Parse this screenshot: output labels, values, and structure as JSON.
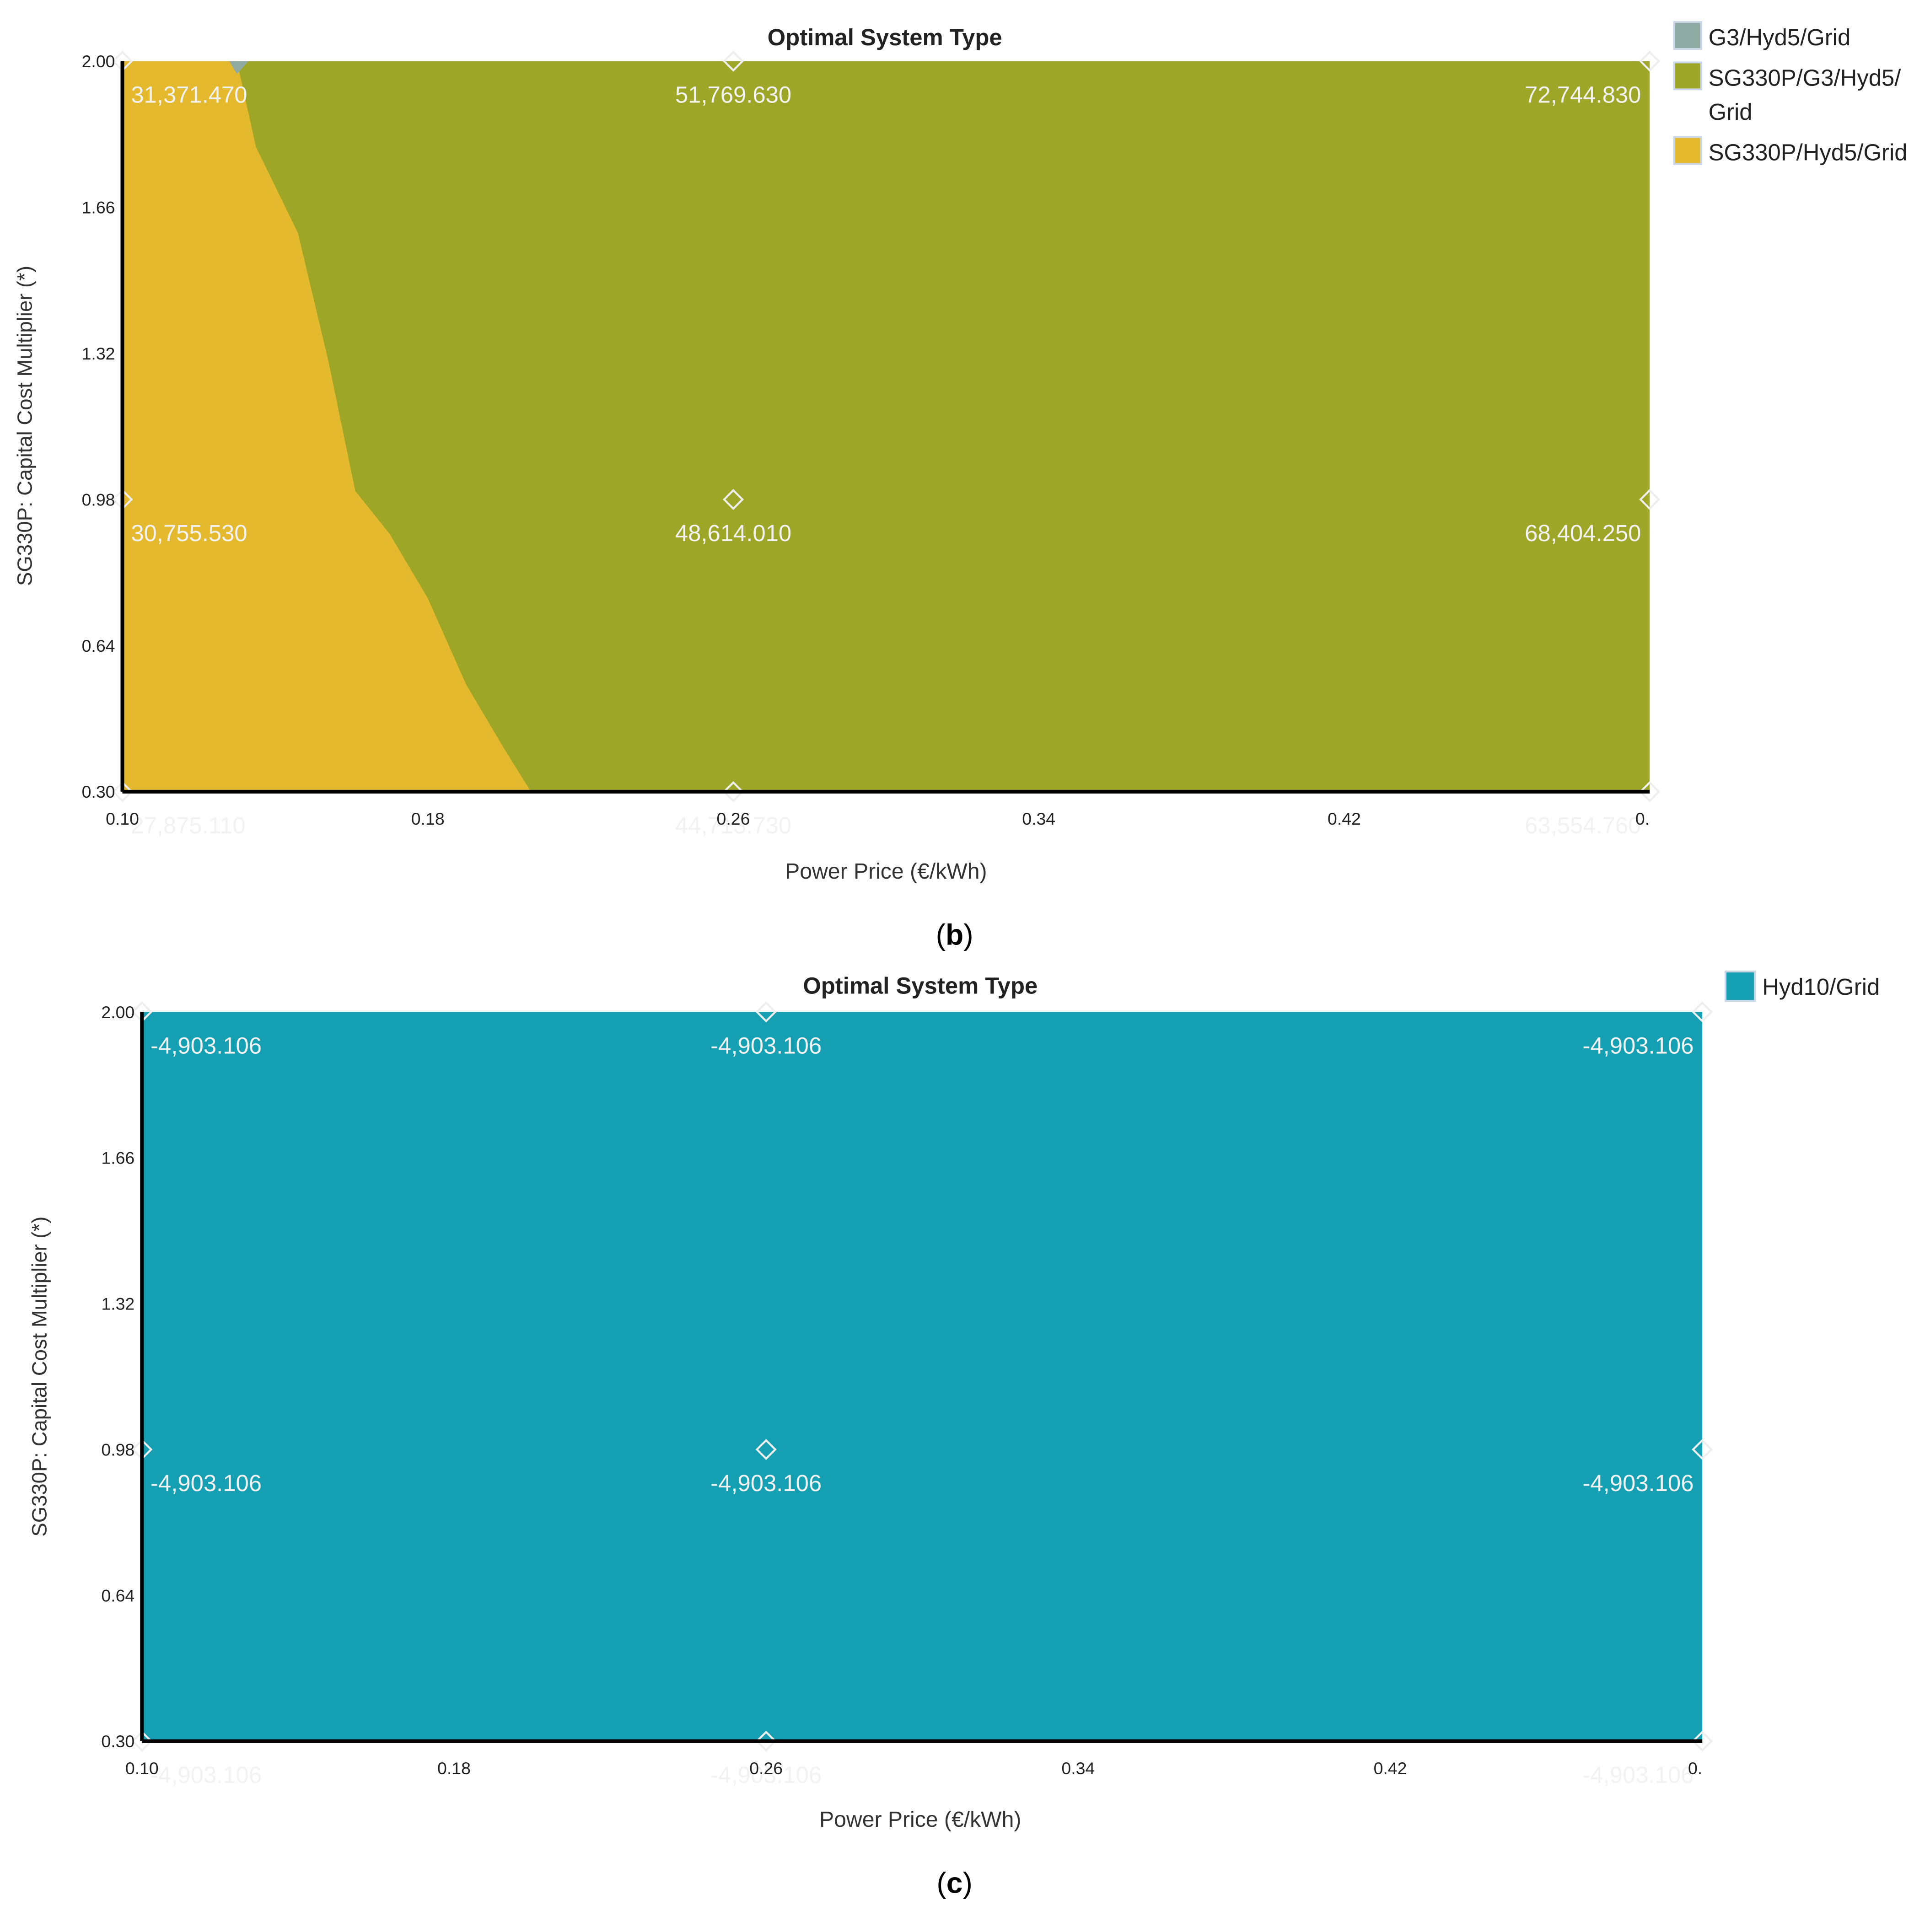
{
  "chart_data": [
    {
      "type": "heatmap",
      "panel_label": "b",
      "title": "Optimal System Type",
      "xlabel": "Power Price (€/kWh)",
      "ylabel": "SG330P: Capital Cost Multiplier (*)",
      "xlim": [
        0.1,
        0.5
      ],
      "ylim": [
        0.3,
        2.0
      ],
      "x_ticks": [
        "0.10",
        "0.18",
        "0.26",
        "0.34",
        "0.42",
        "0."
      ],
      "y_ticks": [
        "0.30",
        "0.64",
        "0.98",
        "1.32",
        "1.66",
        "2.00"
      ],
      "legend_position": "right",
      "legend": [
        {
          "label": "G3/Hyd5/Grid",
          "color": "#8faaa3"
        },
        {
          "label": "SG330P/G3/Hyd5/ Grid",
          "color": "#9da626"
        },
        {
          "label": "SG330P/Hyd5/Grid",
          "color": "#e4b92e"
        }
      ],
      "background_system": "SG330P/G3/Hyd5/ Grid",
      "regions": [
        {
          "system": "SG330P/Hyd5/Grid",
          "boundary": [
            [
              0.1,
              2.0
            ],
            [
              0.13,
              2.0
            ],
            [
              0.135,
              1.8
            ],
            [
              0.146,
              1.6
            ],
            [
              0.154,
              1.3
            ],
            [
              0.161,
              1.0
            ],
            [
              0.17,
              0.9
            ],
            [
              0.18,
              0.75
            ],
            [
              0.19,
              0.55
            ],
            [
              0.2,
              0.4
            ],
            [
              0.207,
              0.3
            ],
            [
              0.1,
              0.3
            ]
          ]
        },
        {
          "system": "G3/Hyd5/Grid",
          "boundary": [
            [
              0.128,
              2.0
            ],
            [
              0.133,
              2.0
            ],
            [
              0.13,
              1.97
            ]
          ]
        }
      ],
      "points": [
        {
          "x": 0.1,
          "y": 2.0,
          "label": "31,371.470"
        },
        {
          "x": 0.26,
          "y": 2.0,
          "label": "51,769.630"
        },
        {
          "x": 0.5,
          "y": 2.0,
          "label": "72,744.830"
        },
        {
          "x": 0.1,
          "y": 0.98,
          "label": "30,755.530"
        },
        {
          "x": 0.26,
          "y": 0.98,
          "label": "48,614.010"
        },
        {
          "x": 0.5,
          "y": 0.98,
          "label": "68,404.250"
        },
        {
          "x": 0.1,
          "y": 0.3,
          "label": "27,875.110"
        },
        {
          "x": 0.26,
          "y": 0.3,
          "label": "44,713.730"
        },
        {
          "x": 0.5,
          "y": 0.3,
          "label": "63,554.760"
        }
      ]
    },
    {
      "type": "heatmap",
      "panel_label": "c",
      "title": "Optimal System Type",
      "xlabel": "Power Price (€/kWh)",
      "ylabel": "SG330P: Capital Cost Multiplier (*)",
      "xlim": [
        0.1,
        0.5
      ],
      "ylim": [
        0.3,
        2.0
      ],
      "x_ticks": [
        "0.10",
        "0.18",
        "0.26",
        "0.34",
        "0.42",
        "0."
      ],
      "y_ticks": [
        "0.30",
        "0.64",
        "0.98",
        "1.32",
        "1.66",
        "2.00"
      ],
      "legend_position": "right",
      "legend": [
        {
          "label": "Hyd10/Grid",
          "color": "#14a0b2"
        }
      ],
      "background_system": "Hyd10/Grid",
      "regions": [],
      "points": [
        {
          "x": 0.1,
          "y": 2.0,
          "label": "-4,903.106"
        },
        {
          "x": 0.26,
          "y": 2.0,
          "label": "-4,903.106"
        },
        {
          "x": 0.5,
          "y": 2.0,
          "label": "-4,903.106"
        },
        {
          "x": 0.1,
          "y": 0.98,
          "label": "-4,903.106"
        },
        {
          "x": 0.26,
          "y": 0.98,
          "label": "-4,903.106"
        },
        {
          "x": 0.5,
          "y": 0.98,
          "label": "-4,903.106"
        },
        {
          "x": 0.1,
          "y": 0.3,
          "label": "-4,903.106"
        },
        {
          "x": 0.26,
          "y": 0.3,
          "label": "-4,903.106"
        },
        {
          "x": 0.5,
          "y": 0.3,
          "label": "-4,903.106"
        }
      ]
    }
  ]
}
